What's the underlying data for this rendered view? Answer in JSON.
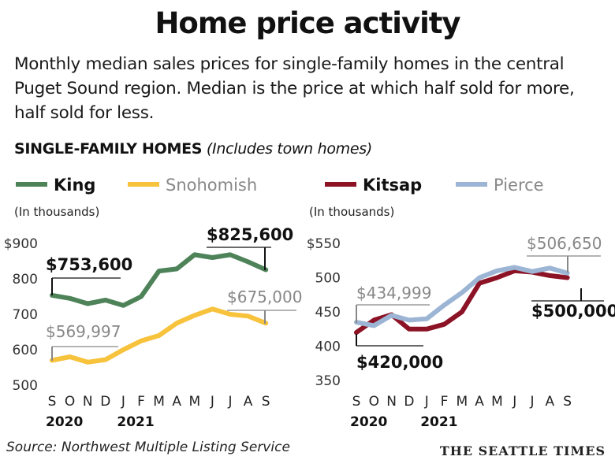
{
  "header": {
    "title": "Home price activity",
    "intro": "Monthly median sales prices for single-family homes in the central Puget Sound region. Median is the price at which half sold for more, half sold for less.",
    "section_bold": "SINGLE-FAMILY HOMES",
    "section_italic": "(Includes town homes)"
  },
  "footer": {
    "source": "Source: Northwest Multiple Listing Service",
    "brand": "THE SEATTLE TIMES"
  },
  "colors": {
    "King": "#4e8359",
    "Snohomish": "#f7c23c",
    "Kitsap": "#8c1225",
    "Pierce": "#9cb5d4"
  },
  "chart_data": [
    {
      "type": "line",
      "ylabel": "(In thousands)",
      "ylim": [
        500,
        900
      ],
      "yticks": [
        500,
        600,
        700,
        800,
        900
      ],
      "ytick_labels": [
        "500",
        "600",
        "700",
        "800",
        "$900"
      ],
      "x": [
        "2020-09",
        "2020-10",
        "2020-11",
        "2020-12",
        "2021-01",
        "2021-02",
        "2021-03",
        "2021-04",
        "2021-05",
        "2021-06",
        "2021-07",
        "2021-08",
        "2021-09"
      ],
      "month_labels": [
        "S",
        "O",
        "N",
        "D",
        "J",
        "F",
        "M",
        "A",
        "M",
        "J",
        "J",
        "A",
        "S"
      ],
      "year_labels": [
        {
          "label": "2020",
          "at": "2020-09"
        },
        {
          "label": "2021",
          "at": "2021-01"
        }
      ],
      "series": [
        {
          "name": "King",
          "values": [
            753.6,
            745,
            730,
            740,
            725,
            750,
            822,
            828,
            868,
            860,
            868,
            848,
            825.6
          ]
        },
        {
          "name": "Snohomish",
          "values": [
            570,
            580,
            565,
            572,
            600,
            625,
            640,
            675,
            697,
            715,
            700,
            695,
            675
          ]
        }
      ],
      "annotations": [
        {
          "series": "King",
          "at": "2020-09",
          "text": "$753,600"
        },
        {
          "series": "King",
          "at": "2021-09",
          "text": "$825,600"
        },
        {
          "series": "Snohomish",
          "at": "2020-09",
          "text": "$569,997"
        },
        {
          "series": "Snohomish",
          "at": "2021-09",
          "text": "$675,000"
        }
      ]
    },
    {
      "type": "line",
      "ylabel": "(In thousands)",
      "ylim": [
        350,
        550
      ],
      "yticks": [
        350,
        400,
        450,
        500,
        550
      ],
      "ytick_labels": [
        "350",
        "400",
        "450",
        "500",
        "$550"
      ],
      "x": [
        "2020-09",
        "2020-10",
        "2020-11",
        "2020-12",
        "2021-01",
        "2021-02",
        "2021-03",
        "2021-04",
        "2021-05",
        "2021-06",
        "2021-07",
        "2021-08",
        "2021-09"
      ],
      "month_labels": [
        "S",
        "O",
        "N",
        "D",
        "J",
        "F",
        "M",
        "A",
        "M",
        "J",
        "J",
        "A",
        "S"
      ],
      "year_labels": [
        {
          "label": "2020",
          "at": "2020-09"
        },
        {
          "label": "2021",
          "at": "2021-01"
        }
      ],
      "series": [
        {
          "name": "Kitsap",
          "values": [
            420,
            438,
            446,
            425,
            425,
            432,
            450,
            492,
            500,
            510,
            508,
            503,
            500
          ]
        },
        {
          "name": "Pierce",
          "values": [
            435,
            430,
            445,
            438,
            440,
            460,
            478,
            500,
            510,
            515,
            509,
            514,
            506.65
          ]
        }
      ],
      "annotations": [
        {
          "series": "Pierce",
          "at": "2020-09",
          "text": "$434,999"
        },
        {
          "series": "Pierce",
          "at": "2021-09",
          "text": "$506,650"
        },
        {
          "series": "Kitsap",
          "at": "2020-09",
          "text": "$420,000"
        },
        {
          "series": "Kitsap",
          "at": "2021-09",
          "text": "$500,000"
        }
      ]
    }
  ]
}
